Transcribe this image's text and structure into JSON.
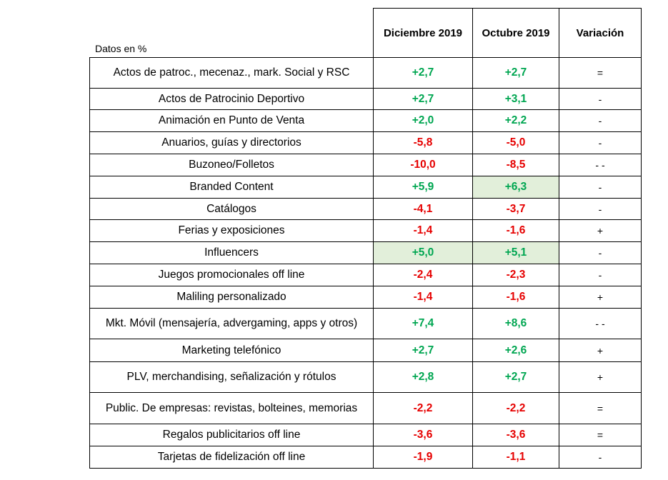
{
  "table": {
    "units_label": "Datos en %",
    "headers": [
      "Diciembre 2019",
      "Octubre 2019",
      "Variación"
    ],
    "colors": {
      "positive": "#00A651",
      "negative": "#E60000",
      "highlight": "#E2EFDA"
    },
    "rows": [
      {
        "label": "Actos de patroc., mecenaz., mark. Social y RSC",
        "dec": "+2,7",
        "oct": "+2,7",
        "var": "="
      },
      {
        "label": "Actos de Patrocinio Deportivo",
        "dec": "+2,7",
        "oct": "+3,1",
        "var": "-"
      },
      {
        "label": "Animación en Punto de Venta",
        "dec": "+2,0",
        "oct": "+2,2",
        "var": "-"
      },
      {
        "label": "Anuarios, guías y directorios",
        "dec": "-5,8",
        "oct": "-5,0",
        "var": "-"
      },
      {
        "label": "Buzoneo/Folletos",
        "dec": "-10,0",
        "oct": "-8,5",
        "var": "- -"
      },
      {
        "label": "Branded Content",
        "dec": "+5,9",
        "oct": "+6,3",
        "var": "-"
      },
      {
        "label": "Catálogos",
        "dec": "-4,1",
        "oct": "-3,7",
        "var": "-"
      },
      {
        "label": "Ferias y exposiciones",
        "dec": "-1,4",
        "oct": "-1,6",
        "var": "+"
      },
      {
        "label": "Influencers",
        "dec": "+5,0",
        "oct": "+5,1",
        "var": "-"
      },
      {
        "label": "Juegos promocionales off line",
        "dec": "-2,4",
        "oct": "-2,3",
        "var": "-"
      },
      {
        "label": "Maliling personalizado",
        "dec": "-1,4",
        "oct": "-1,6",
        "var": "+"
      },
      {
        "label": "Mkt. Móvil (mensajería, advergaming, apps y otros)",
        "dec": "+7,4",
        "oct": "+8,6",
        "var": "- -"
      },
      {
        "label": "Marketing telefónico",
        "dec": "+2,7",
        "oct": "+2,6",
        "var": "+"
      },
      {
        "label": "PLV, merchandising, señalización y rótulos",
        "dec": "+2,8",
        "oct": "+2,7",
        "var": "+"
      },
      {
        "label": "Public. De empresas: revistas, bolteines, memorias",
        "dec": "-2,2",
        "oct": "-2,2",
        "var": "="
      },
      {
        "label": "Regalos publicitarios off line",
        "dec": "-3,6",
        "oct": "-3,6",
        "var": "="
      },
      {
        "label": "Tarjetas de fidelización off line",
        "dec": "-1,9",
        "oct": "-1,1",
        "var": "-"
      }
    ]
  }
}
